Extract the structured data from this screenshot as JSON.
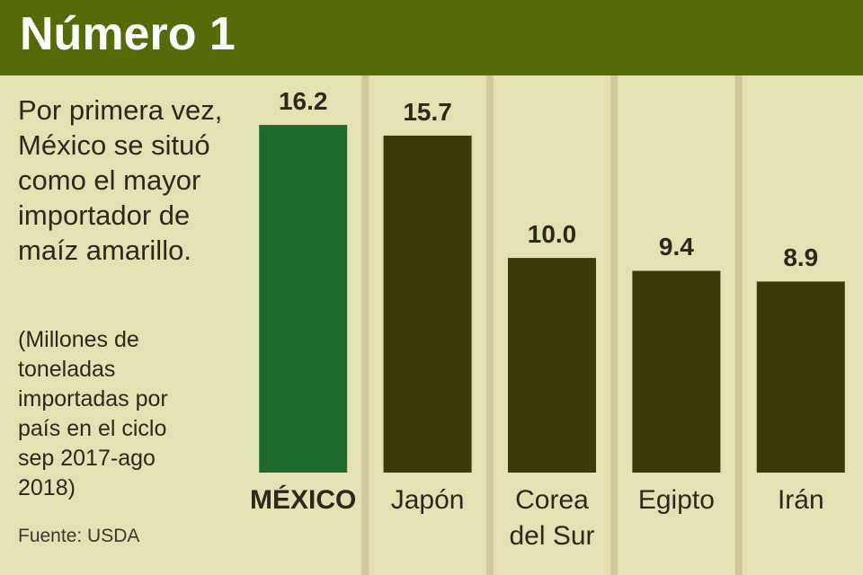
{
  "chart_data": {
    "type": "bar",
    "title": "Número 1",
    "subtitle": "Por primera vez, México se situó como el mayor importador de maíz amarillo.",
    "note": "(Millones de toneladas importadas por país en el ciclo sep 2017-ago 2018)",
    "source": "Fuente: USDA",
    "categories": [
      "MÉXICO",
      "Japón",
      "Corea del Sur",
      "Egipto",
      "Irán"
    ],
    "values": [
      16.2,
      15.7,
      10,
      9.4,
      8.9
    ],
    "value_labels": [
      "16.2",
      "15.7",
      "10.0",
      "9.4",
      "8.9"
    ],
    "colors": [
      "#1f6b2d",
      "#3b3906",
      "#3b3906",
      "#3b3906",
      "#3b3906"
    ]
  }
}
